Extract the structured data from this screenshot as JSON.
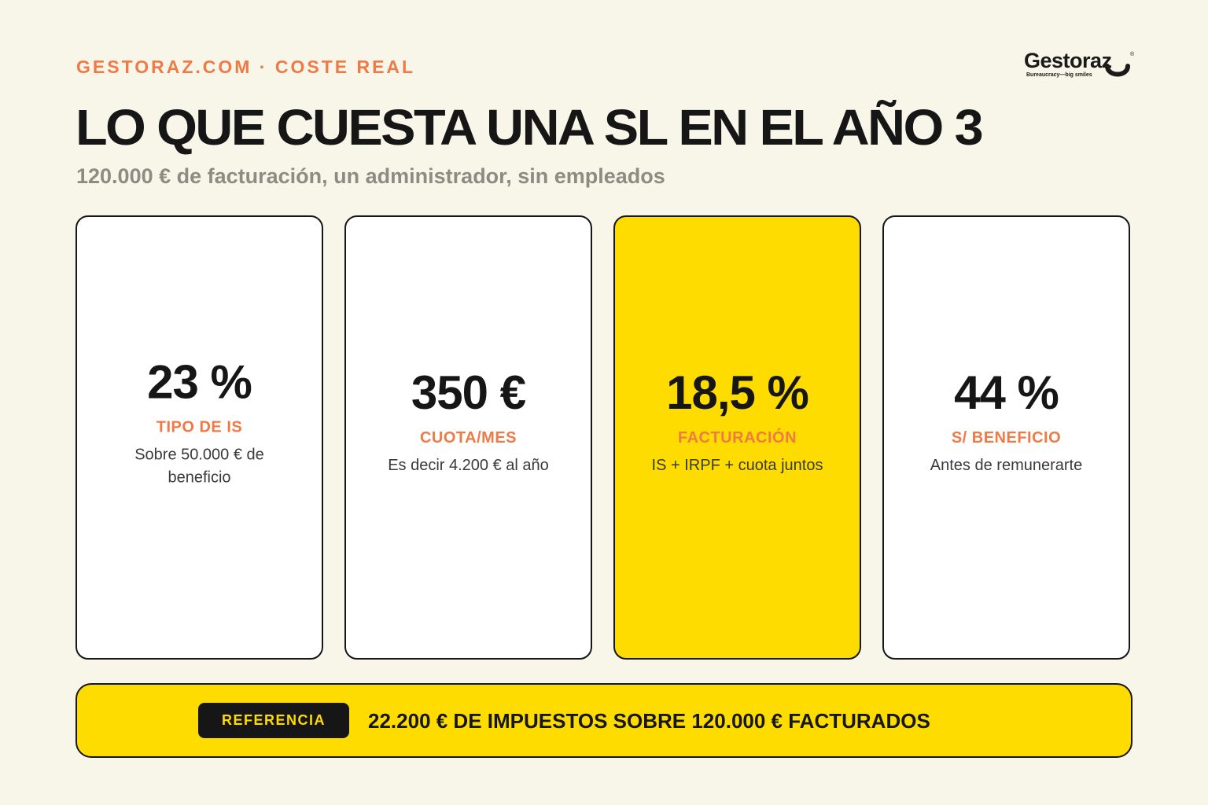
{
  "header": {
    "eyebrow": "GESTORAZ.COM · COSTE REAL",
    "title": "LO QUE CUESTA UNA SL EN EL AÑO 3",
    "subtitle": "120.000 € de facturación, un administrador, sin empleados"
  },
  "logo": {
    "wordmark": "Gestoraz",
    "registered": "®",
    "tagline": "Bureaucracy—big smiles"
  },
  "cards": [
    {
      "value": "23 %",
      "label": "TIPO DE IS",
      "description": "Sobre 50.000 € de beneficio",
      "highlighted": false
    },
    {
      "value": "350 €",
      "label": "CUOTA/MES",
      "description": "Es decir 4.200 € al año",
      "highlighted": false
    },
    {
      "value": "18,5 %",
      "label": "FACTURACIÓN",
      "description": "IS + IRPF + cuota juntos",
      "highlighted": true
    },
    {
      "value": "44 %",
      "label": "S/ BENEFICIO",
      "description": "Antes de remunerarte",
      "highlighted": false
    }
  ],
  "banner": {
    "badge": "REFERENCIA",
    "text": "22.200 € DE IMPUESTOS SOBRE 120.000 € FACTURADOS"
  },
  "colors": {
    "background": "#f7f6e9",
    "accent_orange": "#f07a45",
    "accent_yellow": "#ffdc00",
    "ink": "#161616",
    "muted": "#8d8c83"
  }
}
